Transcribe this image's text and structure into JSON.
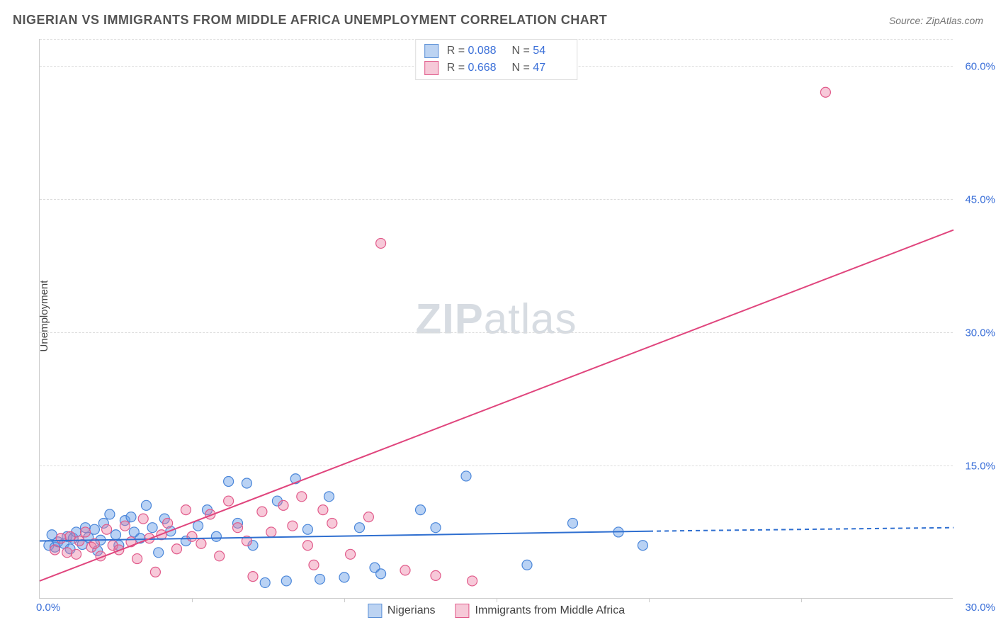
{
  "header": {
    "title": "NIGERIAN VS IMMIGRANTS FROM MIDDLE AFRICA UNEMPLOYMENT CORRELATION CHART",
    "source_label": "Source: ",
    "source_name": "ZipAtlas.com"
  },
  "watermark": {
    "zip": "ZIP",
    "atlas": "atlas"
  },
  "chart": {
    "type": "scatter-with-regression",
    "ylabel": "Unemployment",
    "x_range": [
      0,
      30
    ],
    "y_range": [
      0,
      63
    ],
    "x_origin_label": "0.0%",
    "x_end_label": "30.0%",
    "x_ticks_minor": [
      5,
      10,
      15,
      20,
      25
    ],
    "y_gridlines": [
      15,
      30,
      45,
      60
    ],
    "y_tick_labels": [
      "15.0%",
      "30.0%",
      "45.0%",
      "60.0%"
    ],
    "axis_label_color": "#3a6fd8",
    "grid_color": "#dddddd",
    "series": [
      {
        "id": "nigerians",
        "label": "Nigerians",
        "R_label": "R = ",
        "R": "0.088",
        "N_label": "N = ",
        "N": "54",
        "color_fill": "rgba(100,155,230,0.45)",
        "color_stroke": "#4a86d9",
        "swatch_fill": "#bcd3f2",
        "swatch_border": "#5a8fd6",
        "marker_radius": 7,
        "regression": {
          "x1": 0,
          "y1": 6.5,
          "x2": 20,
          "y2": 7.6,
          "x_dash_to": 30,
          "y_dash_to": 8.0,
          "stroke": "#2f6fd0",
          "width": 2
        },
        "points": [
          [
            0.3,
            6.0
          ],
          [
            0.4,
            7.2
          ],
          [
            0.5,
            5.8
          ],
          [
            0.6,
            6.4
          ],
          [
            0.8,
            6.2
          ],
          [
            0.9,
            7.0
          ],
          [
            1.0,
            5.6
          ],
          [
            1.1,
            6.8
          ],
          [
            1.2,
            7.5
          ],
          [
            1.4,
            6.1
          ],
          [
            1.5,
            8.0
          ],
          [
            1.6,
            6.9
          ],
          [
            1.8,
            7.8
          ],
          [
            1.9,
            5.4
          ],
          [
            2.0,
            6.6
          ],
          [
            2.1,
            8.5
          ],
          [
            2.3,
            9.5
          ],
          [
            2.5,
            7.2
          ],
          [
            2.6,
            6.0
          ],
          [
            2.8,
            8.8
          ],
          [
            3.0,
            9.2
          ],
          [
            3.1,
            7.5
          ],
          [
            3.3,
            6.8
          ],
          [
            3.5,
            10.5
          ],
          [
            3.7,
            8.0
          ],
          [
            3.9,
            5.2
          ],
          [
            4.1,
            9.0
          ],
          [
            4.3,
            7.6
          ],
          [
            4.8,
            6.5
          ],
          [
            5.2,
            8.2
          ],
          [
            5.5,
            10.0
          ],
          [
            5.8,
            7.0
          ],
          [
            6.2,
            13.2
          ],
          [
            6.5,
            8.5
          ],
          [
            6.8,
            13.0
          ],
          [
            7.0,
            6.0
          ],
          [
            7.4,
            1.8
          ],
          [
            7.8,
            11.0
          ],
          [
            8.1,
            2.0
          ],
          [
            8.4,
            13.5
          ],
          [
            8.8,
            7.8
          ],
          [
            9.2,
            2.2
          ],
          [
            9.5,
            11.5
          ],
          [
            10.0,
            2.4
          ],
          [
            10.5,
            8.0
          ],
          [
            11.0,
            3.5
          ],
          [
            11.2,
            2.8
          ],
          [
            12.5,
            10.0
          ],
          [
            13.0,
            8.0
          ],
          [
            14.0,
            13.8
          ],
          [
            16.0,
            3.8
          ],
          [
            17.5,
            8.5
          ],
          [
            19.0,
            7.5
          ],
          [
            19.8,
            6.0
          ]
        ]
      },
      {
        "id": "middle_africa",
        "label": "Immigrants from Middle Africa",
        "R_label": "R = ",
        "R": "0.668",
        "N_label": "N = ",
        "N": "47",
        "color_fill": "rgba(235,120,160,0.40)",
        "color_stroke": "#e15a8a",
        "swatch_fill": "#f6c9d8",
        "swatch_border": "#e15a8a",
        "marker_radius": 7,
        "regression": {
          "x1": 0,
          "y1": 2.0,
          "x2": 30,
          "y2": 41.5,
          "stroke": "#e0457d",
          "width": 2
        },
        "points": [
          [
            0.5,
            5.5
          ],
          [
            0.7,
            6.8
          ],
          [
            0.9,
            5.2
          ],
          [
            1.0,
            7.0
          ],
          [
            1.2,
            5.0
          ],
          [
            1.3,
            6.5
          ],
          [
            1.5,
            7.5
          ],
          [
            1.7,
            5.8
          ],
          [
            1.8,
            6.2
          ],
          [
            2.0,
            4.8
          ],
          [
            2.2,
            7.8
          ],
          [
            2.4,
            6.0
          ],
          [
            2.6,
            5.5
          ],
          [
            2.8,
            8.2
          ],
          [
            3.0,
            6.4
          ],
          [
            3.2,
            4.5
          ],
          [
            3.4,
            9.0
          ],
          [
            3.6,
            6.8
          ],
          [
            3.8,
            3.0
          ],
          [
            4.0,
            7.2
          ],
          [
            4.2,
            8.5
          ],
          [
            4.5,
            5.6
          ],
          [
            4.8,
            10.0
          ],
          [
            5.0,
            7.0
          ],
          [
            5.3,
            6.2
          ],
          [
            5.6,
            9.5
          ],
          [
            5.9,
            4.8
          ],
          [
            6.2,
            11.0
          ],
          [
            6.5,
            8.0
          ],
          [
            6.8,
            6.5
          ],
          [
            7.0,
            2.5
          ],
          [
            7.3,
            9.8
          ],
          [
            7.6,
            7.5
          ],
          [
            8.0,
            10.5
          ],
          [
            8.3,
            8.2
          ],
          [
            8.6,
            11.5
          ],
          [
            9.0,
            3.8
          ],
          [
            9.3,
            10.0
          ],
          [
            9.6,
            8.5
          ],
          [
            10.2,
            5.0
          ],
          [
            10.8,
            9.2
          ],
          [
            11.2,
            40.0
          ],
          [
            12.0,
            3.2
          ],
          [
            13.0,
            2.6
          ],
          [
            14.2,
            2.0
          ],
          [
            25.8,
            57.0
          ],
          [
            8.8,
            6.0
          ]
        ]
      }
    ]
  }
}
